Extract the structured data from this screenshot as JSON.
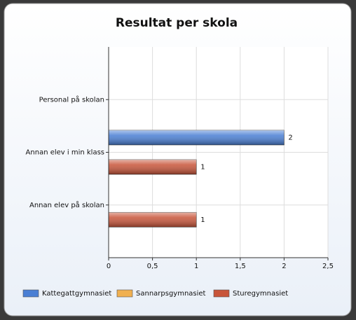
{
  "chart_data": {
    "type": "hbar",
    "title": "Resultat per skola",
    "categories": [
      "Personal på skolan",
      "Annan elev i min klass",
      "Annan elev på skolan"
    ],
    "series": [
      {
        "name": "Kattegattgymnasiet",
        "color": "#4a7fd4",
        "values": [
          null,
          2,
          null
        ]
      },
      {
        "name": "Sannarpsgymnasiet",
        "color": "#f0b050",
        "values": [
          null,
          null,
          null
        ]
      },
      {
        "name": "Sturegymnasiet",
        "color": "#c8553a",
        "values": [
          null,
          1,
          1
        ]
      }
    ],
    "xlim": [
      0,
      2.5
    ],
    "xticks": [
      0,
      {
        "value": 0.5,
        "label": "0,5"
      },
      1,
      {
        "value": 1.5,
        "label": "1,5"
      },
      2,
      {
        "value": 2.5,
        "label": "2,5"
      }
    ],
    "grid": true,
    "legend": "bottom"
  }
}
